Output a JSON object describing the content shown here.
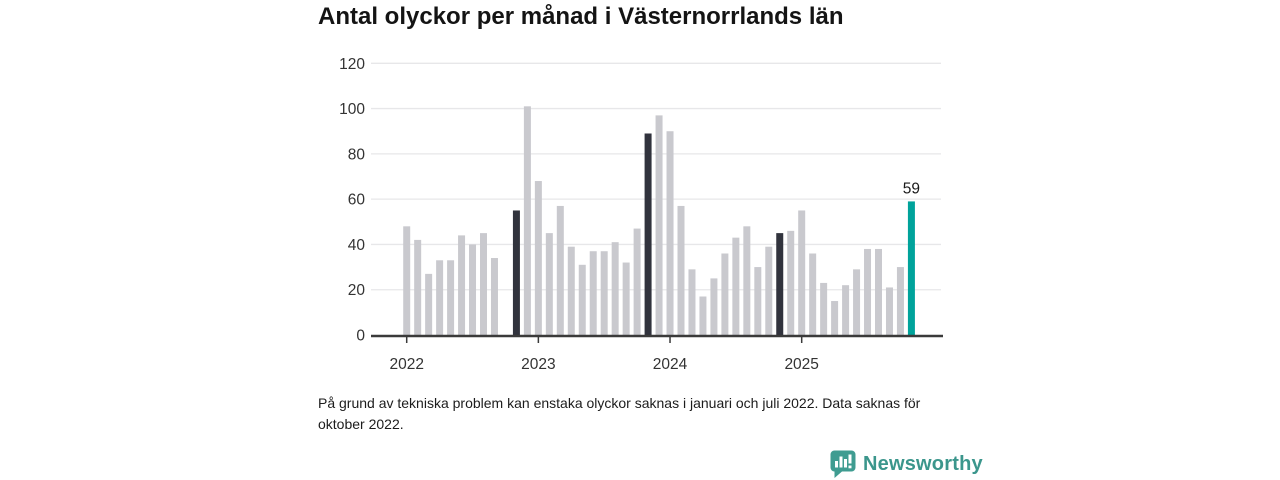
{
  "header": {
    "title": "Antal olyckor per månad i Västernorrlands län"
  },
  "chart_data": {
    "type": "bar",
    "title": "Antal olyckor per månad i Västernorrlands län",
    "x": [
      "2022-01",
      "2022-02",
      "2022-03",
      "2022-04",
      "2022-05",
      "2022-06",
      "2022-07",
      "2022-08",
      "2022-09",
      "2022-10",
      "2022-11",
      "2022-12",
      "2023-01",
      "2023-02",
      "2023-03",
      "2023-04",
      "2023-05",
      "2023-06",
      "2023-07",
      "2023-08",
      "2023-09",
      "2023-10",
      "2023-11",
      "2023-12",
      "2024-01",
      "2024-02",
      "2024-03",
      "2024-04",
      "2024-05",
      "2024-06",
      "2024-07",
      "2024-08",
      "2024-09",
      "2024-10",
      "2024-11",
      "2024-12",
      "2025-01",
      "2025-02",
      "2025-03",
      "2025-04",
      "2025-05",
      "2025-06",
      "2025-07",
      "2025-08",
      "2025-09",
      "2025-10",
      "2025-11"
    ],
    "values": [
      48,
      42,
      27,
      33,
      33,
      44,
      40,
      45,
      34,
      null,
      55,
      101,
      68,
      45,
      57,
      39,
      31,
      37,
      37,
      41,
      32,
      47,
      89,
      97,
      90,
      57,
      29,
      17,
      25,
      36,
      43,
      48,
      30,
      39,
      45,
      46,
      55,
      36,
      23,
      15,
      22,
      29,
      38,
      38,
      21,
      30,
      59
    ],
    "missing_months": [
      "2022-10"
    ],
    "dark_highlight_months": [
      "2022-11",
      "2023-11",
      "2024-11"
    ],
    "accent_month": "2025-11",
    "accent_label": "59",
    "y_ticks": [
      0,
      20,
      40,
      60,
      80,
      100,
      120
    ],
    "ylim": [
      0,
      120
    ],
    "x_tick_labels": [
      "2022",
      "2023",
      "2024",
      "2025"
    ],
    "grid": "horizontal",
    "legend": "none",
    "colors": {
      "bar": "#c9c9ce",
      "dark": "#31333d",
      "accent": "#00a39b",
      "grid": "#e7e7e9",
      "axis": "#3a3a3a",
      "label": "#333333",
      "value_label": "#1a1a1a"
    }
  },
  "footnote": {
    "text": "På grund av tekniska problem kan enstaka olyckor saknas i januari och juli 2022. Data saknas för oktober 2022."
  },
  "branding": {
    "name": "Newsworthy",
    "color": "#3b968c",
    "icon": "bar-chart-speech-bubble-icon"
  }
}
